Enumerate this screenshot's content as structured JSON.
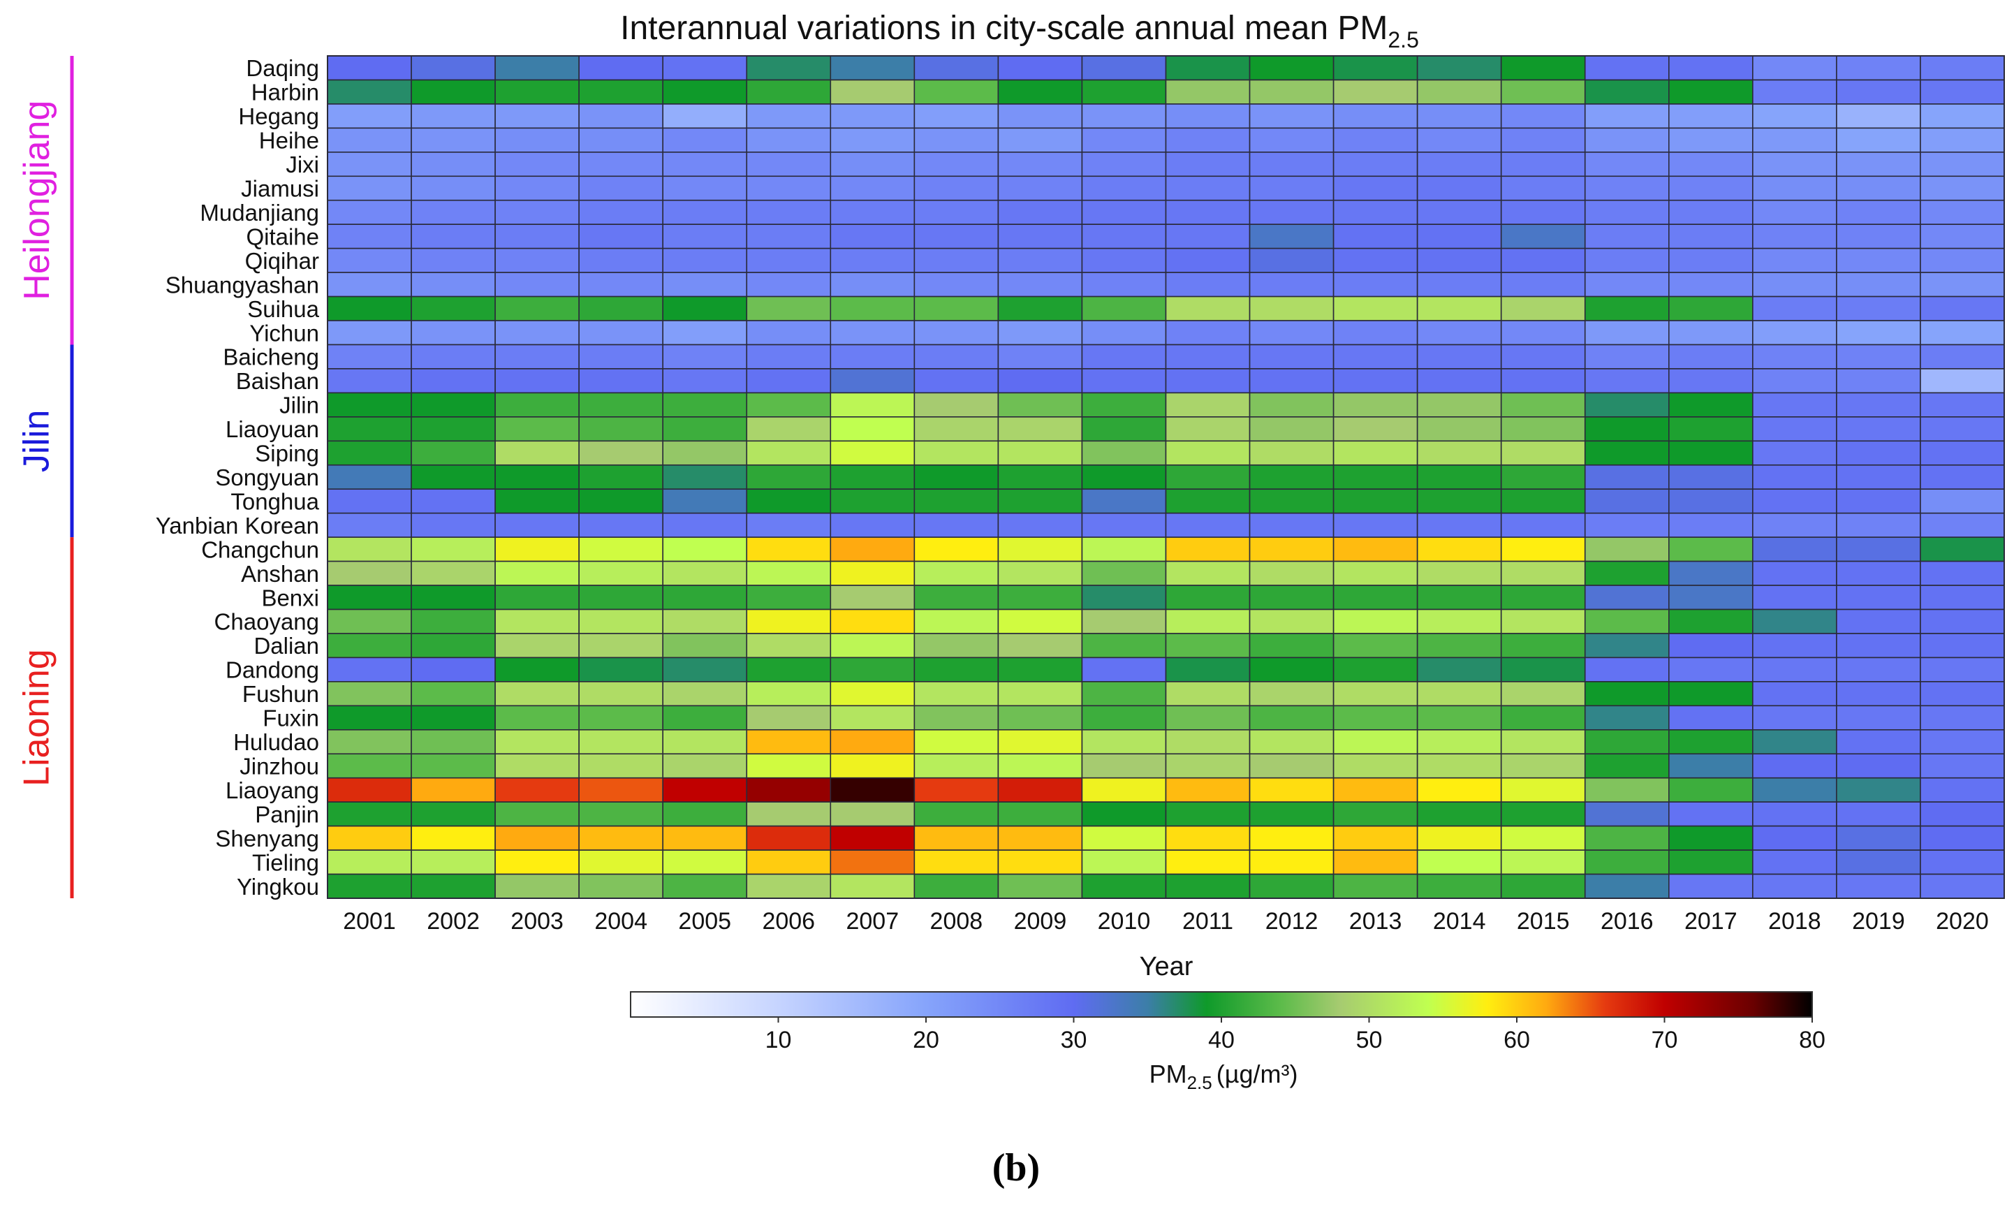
{
  "chart_data": {
    "type": "heatmap",
    "title": "Interannual variations in city-scale annual mean PM",
    "title_sub": "2.5",
    "xlabel": "Year",
    "ylabel": "",
    "panel_label": "(b)",
    "x": [
      "2001",
      "2002",
      "2003",
      "2004",
      "2005",
      "2006",
      "2007",
      "2008",
      "2009",
      "2010",
      "2011",
      "2012",
      "2013",
      "2014",
      "2015",
      "2016",
      "2017",
      "2018",
      "2019",
      "2020"
    ],
    "y": [
      "Daqing",
      "Harbin",
      "Hegang",
      "Heihe",
      "Jixi",
      "Jiamusi",
      "Mudanjiang",
      "Qitaihe",
      "Qiqihar",
      "Shuangyashan",
      "Suihua",
      "Yichun",
      "Baicheng",
      "Baishan",
      "Jilin",
      "Liaoyuan",
      "Siping",
      "Songyuan",
      "Tonghua",
      "Yanbian Korean",
      "Changchun",
      "Anshan",
      "Benxi",
      "Chaoyang",
      "Dalian",
      "Dandong",
      "Fushun",
      "Fuxin",
      "Huludao",
      "Jinzhou",
      "Liaoyang",
      "Panjin",
      "Shenyang",
      "Tieling",
      "Yingkou"
    ],
    "provinces": [
      {
        "name": "Heilongjiang",
        "first_city": "Daqing",
        "last_city": "Yichun",
        "color": "#e020e0"
      },
      {
        "name": "Jilin",
        "first_city": "Baicheng",
        "last_city": "Yanbian Korean",
        "color": "#1a1adb"
      },
      {
        "name": "Liaoning",
        "first_city": "Changchun",
        "last_city": "Yingkou",
        "color": "#e82020"
      }
    ],
    "values": [
      [
        30,
        31,
        35,
        30,
        29,
        37,
        35,
        31,
        30,
        31,
        38,
        39,
        38,
        37,
        39,
        29,
        29,
        25,
        26,
        27
      ],
      [
        37,
        39,
        40,
        40,
        39,
        41,
        48,
        44,
        39,
        40,
        47,
        47,
        48,
        47,
        45,
        38,
        39,
        27,
        28,
        28
      ],
      [
        21,
        22,
        22,
        23,
        18,
        22,
        22,
        21,
        23,
        23,
        24,
        23,
        24,
        24,
        25,
        21,
        21,
        20,
        17,
        20
      ],
      [
        23,
        23,
        24,
        24,
        25,
        23,
        22,
        23,
        22,
        25,
        26,
        25,
        26,
        25,
        26,
        23,
        22,
        22,
        20,
        21
      ],
      [
        23,
        24,
        25,
        25,
        25,
        25,
        24,
        25,
        25,
        26,
        27,
        27,
        27,
        27,
        27,
        25,
        25,
        23,
        23,
        23
      ],
      [
        23,
        24,
        25,
        26,
        25,
        25,
        25,
        26,
        26,
        27,
        27,
        27,
        28,
        28,
        27,
        26,
        26,
        24,
        24,
        23
      ],
      [
        25,
        26,
        26,
        27,
        27,
        27,
        27,
        27,
        28,
        28,
        28,
        28,
        28,
        28,
        28,
        27,
        27,
        25,
        26,
        25
      ],
      [
        26,
        27,
        27,
        28,
        27,
        27,
        28,
        28,
        28,
        28,
        28,
        33,
        29,
        29,
        33,
        27,
        27,
        26,
        26,
        25
      ],
      [
        25,
        26,
        26,
        27,
        27,
        27,
        27,
        27,
        27,
        28,
        29,
        31,
        29,
        29,
        29,
        27,
        27,
        25,
        25,
        25
      ],
      [
        23,
        24,
        25,
        25,
        24,
        25,
        24,
        25,
        25,
        26,
        27,
        27,
        27,
        27,
        27,
        25,
        25,
        24,
        24,
        23
      ],
      [
        39,
        40,
        42,
        41,
        39,
        45,
        44,
        44,
        40,
        43,
        50,
        50,
        51,
        51,
        49,
        40,
        41,
        27,
        27,
        28
      ],
      [
        22,
        23,
        23,
        23,
        21,
        24,
        23,
        23,
        22,
        24,
        26,
        25,
        26,
        25,
        25,
        22,
        22,
        21,
        20,
        20
      ],
      [
        26,
        27,
        27,
        27,
        26,
        27,
        27,
        27,
        26,
        28,
        28,
        28,
        28,
        28,
        28,
        26,
        27,
        26,
        26,
        27
      ],
      [
        28,
        29,
        29,
        29,
        28,
        29,
        32,
        29,
        30,
        29,
        29,
        29,
        29,
        29,
        29,
        28,
        28,
        26,
        26,
        16
      ],
      [
        39,
        39,
        42,
        42,
        42,
        44,
        53,
        48,
        45,
        42,
        49,
        46,
        47,
        47,
        45,
        37,
        39,
        28,
        28,
        28
      ],
      [
        40,
        40,
        44,
        43,
        42,
        49,
        54,
        49,
        49,
        41,
        49,
        47,
        48,
        47,
        46,
        39,
        40,
        28,
        28,
        28
      ],
      [
        40,
        42,
        50,
        48,
        47,
        51,
        55,
        51,
        51,
        46,
        51,
        50,
        51,
        50,
        50,
        39,
        39,
        28,
        29,
        29
      ],
      [
        34,
        39,
        39,
        40,
        37,
        41,
        40,
        39,
        40,
        39,
        41,
        40,
        40,
        40,
        41,
        31,
        31,
        29,
        29,
        29
      ],
      [
        29,
        29,
        39,
        39,
        34,
        39,
        40,
        40,
        40,
        33,
        40,
        40,
        40,
        40,
        40,
        31,
        31,
        29,
        29,
        24
      ],
      [
        27,
        28,
        28,
        28,
        28,
        27,
        28,
        28,
        28,
        28,
        28,
        28,
        28,
        28,
        28,
        27,
        27,
        26,
        26,
        26
      ],
      [
        51,
        52,
        57,
        55,
        54,
        59,
        62,
        58,
        56,
        53,
        60,
        60,
        61,
        59,
        58,
        47,
        44,
        31,
        31,
        38
      ],
      [
        48,
        49,
        53,
        52,
        51,
        53,
        57,
        52,
        51,
        45,
        51,
        50,
        51,
        50,
        50,
        40,
        33,
        29,
        29,
        29
      ],
      [
        39,
        39,
        41,
        41,
        41,
        42,
        48,
        42,
        42,
        37,
        41,
        41,
        41,
        41,
        41,
        32,
        33,
        29,
        29,
        29
      ],
      [
        45,
        42,
        51,
        51,
        50,
        57,
        59,
        53,
        55,
        48,
        52,
        51,
        53,
        52,
        51,
        44,
        40,
        36,
        29,
        29
      ],
      [
        42,
        41,
        49,
        49,
        46,
        50,
        53,
        47,
        48,
        43,
        44,
        42,
        44,
        43,
        42,
        36,
        30,
        29,
        29,
        29
      ],
      [
        29,
        30,
        39,
        38,
        37,
        40,
        41,
        40,
        40,
        29,
        38,
        39,
        40,
        37,
        38,
        29,
        28,
        28,
        28,
        28
      ],
      [
        46,
        44,
        50,
        50,
        49,
        52,
        56,
        51,
        51,
        43,
        50,
        49,
        50,
        50,
        49,
        39,
        39,
        29,
        29,
        29
      ],
      [
        39,
        39,
        44,
        44,
        42,
        48,
        51,
        46,
        45,
        42,
        45,
        43,
        44,
        44,
        42,
        36,
        29,
        28,
        28,
        28
      ],
      [
        46,
        45,
        51,
        51,
        51,
        61,
        62,
        55,
        56,
        51,
        50,
        51,
        53,
        52,
        51,
        41,
        40,
        36,
        29,
        28
      ],
      [
        44,
        44,
        50,
        50,
        49,
        55,
        57,
        52,
        53,
        48,
        49,
        48,
        50,
        50,
        49,
        40,
        35,
        30,
        30,
        28
      ],
      [
        67,
        62,
        66,
        65,
        70,
        73,
        78,
        66,
        68,
        57,
        61,
        59,
        61,
        58,
        56,
        46,
        42,
        35,
        36,
        29
      ],
      [
        40,
        40,
        43,
        43,
        42,
        48,
        48,
        42,
        42,
        39,
        40,
        40,
        41,
        40,
        40,
        32,
        29,
        29,
        29,
        30
      ],
      [
        60,
        58,
        62,
        61,
        61,
        67,
        70,
        61,
        61,
        55,
        59,
        58,
        60,
        57,
        55,
        43,
        39,
        30,
        31,
        30
      ],
      [
        52,
        52,
        58,
        56,
        55,
        60,
        64,
        59,
        59,
        53,
        58,
        58,
        61,
        54,
        53,
        42,
        40,
        29,
        31,
        29
      ],
      [
        40,
        40,
        47,
        46,
        43,
        49,
        51,
        42,
        45,
        40,
        40,
        41,
        43,
        42,
        41,
        35,
        28,
        28,
        28,
        28
      ]
    ],
    "colorbar": {
      "label": "PM",
      "label_sub": "2.5",
      "label_units": "(µg/m³)",
      "range": [
        0,
        80
      ],
      "ticks": [
        10,
        20,
        30,
        40,
        50,
        60,
        70,
        80
      ],
      "stops": [
        {
          "v": 0,
          "c": "#ffffff"
        },
        {
          "v": 10,
          "c": "#c6d4ff"
        },
        {
          "v": 20,
          "c": "#86a4fb"
        },
        {
          "v": 30,
          "c": "#5f6cf2"
        },
        {
          "v": 35,
          "c": "#3c7ea8"
        },
        {
          "v": 39,
          "c": "#0f9a2a"
        },
        {
          "v": 44,
          "c": "#5cbb4a"
        },
        {
          "v": 48,
          "c": "#a6cb70"
        },
        {
          "v": 54,
          "c": "#c0ff50"
        },
        {
          "v": 58,
          "c": "#ffee10"
        },
        {
          "v": 62,
          "c": "#ffaa10"
        },
        {
          "v": 66,
          "c": "#e53a10"
        },
        {
          "v": 70,
          "c": "#c00000"
        },
        {
          "v": 76,
          "c": "#6a0000"
        },
        {
          "v": 80,
          "c": "#000000"
        }
      ]
    }
  }
}
